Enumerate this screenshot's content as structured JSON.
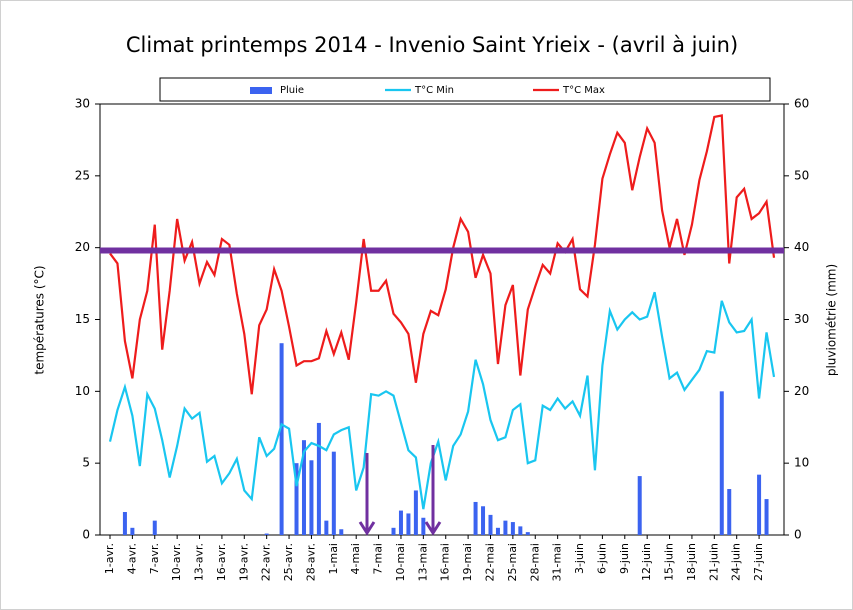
{
  "chart_data": {
    "type": "bar",
    "title": "Climat printemps 2014 - Invenio Saint Yrieix - (avril à juin)",
    "y_label": "températures (°C)",
    "y2_label": "pluviométrie (mm)",
    "categories": [
      "1-avr.",
      null,
      null,
      "4-avr.",
      null,
      null,
      "7-avr.",
      null,
      null,
      "10-avr.",
      null,
      null,
      "13-avr.",
      null,
      null,
      "16-avr.",
      null,
      null,
      "19-avr.",
      null,
      null,
      "22-avr.",
      null,
      null,
      "25-avr.",
      null,
      null,
      "28-avr.",
      null,
      null,
      "1-mai",
      null,
      null,
      "4-mai",
      null,
      null,
      "7-mai",
      null,
      null,
      "10-mai",
      null,
      null,
      "13-mai",
      null,
      null,
      "16-mai",
      null,
      null,
      "19-mai",
      null,
      null,
      "22-mai",
      null,
      null,
      "25-mai",
      null,
      null,
      "28-mai",
      null,
      null,
      "31-mai",
      null,
      null,
      "3-juin",
      null,
      null,
      "6-juin",
      null,
      null,
      "9-juin",
      null,
      null,
      "12-juin",
      null,
      null,
      "15-juin",
      null,
      null,
      "18-juin",
      null,
      null,
      "21-juin",
      null,
      null,
      "24-juin",
      null,
      null,
      "27-juin",
      null,
      null
    ],
    "series": [
      {
        "name": "Pluie",
        "type": "bar",
        "axis": "y2",
        "color": "#3b63f0",
        "values": [
          0,
          0,
          3.2,
          1,
          0,
          0,
          2,
          0,
          0,
          0,
          0,
          0,
          0,
          0,
          0,
          0,
          0,
          0,
          0,
          0,
          0,
          0.2,
          0,
          26.7,
          0,
          10,
          13.2,
          10.4,
          15.6,
          2,
          11.6,
          0.8,
          0,
          0,
          0,
          0,
          0,
          0,
          1,
          3.4,
          3,
          6.2,
          2.4,
          0,
          0,
          0,
          0,
          0,
          0,
          4.6,
          4,
          2.8,
          1,
          2,
          1.8,
          1.2,
          0.4,
          0,
          0,
          0,
          0,
          0,
          0,
          0,
          0,
          0,
          0,
          0,
          0,
          0,
          0,
          8.2,
          0,
          0,
          0,
          0,
          0,
          0,
          0,
          0,
          0,
          0,
          20,
          6.4,
          0,
          0,
          0,
          8.4,
          5,
          0
        ]
      },
      {
        "name": "T°C Min",
        "type": "line",
        "color": "#19c6f0",
        "values": [
          6.5,
          8.7,
          10.3,
          8.3,
          4.8,
          9.8,
          8.8,
          6.6,
          4,
          6.2,
          8.8,
          8.1,
          8.5,
          5.1,
          5.5,
          3.6,
          4.3,
          5.3,
          3.1,
          2.5,
          6.8,
          5.5,
          6,
          7.7,
          7.4,
          3.4,
          5.8,
          6.4,
          6.2,
          5.9,
          7,
          7.3,
          7.5,
          3.1,
          4.7,
          9.8,
          9.7,
          10,
          9.7,
          7.8,
          5.9,
          5.4,
          1.8,
          5,
          6.5,
          3.8,
          6.2,
          7,
          8.6,
          12.2,
          10.5,
          8,
          6.6,
          6.8,
          8.7,
          9.1,
          5,
          5.2,
          9,
          8.7,
          9.5,
          8.8,
          9.3,
          8.3,
          11.1,
          4.5,
          11.8,
          15.6,
          14.3,
          15,
          15.5,
          15,
          15.2,
          16.9,
          13.8,
          10.9,
          11.3,
          10.1,
          10.8,
          11.5,
          12.8,
          12.7,
          16.3,
          14.8,
          14.1,
          14.2,
          15,
          9.5,
          14.1,
          11
        ]
      },
      {
        "name": "T°C Max",
        "type": "line",
        "color": "#ee1c1c",
        "values": [
          19.6,
          18.9,
          13.5,
          10.9,
          15,
          17,
          21.6,
          12.9,
          17,
          22,
          19.1,
          20.4,
          17.5,
          19,
          18.1,
          20.6,
          20.2,
          16.8,
          14,
          9.8,
          14.6,
          15.7,
          18.5,
          17,
          14.5,
          11.8,
          12.1,
          12.1,
          12.3,
          14.2,
          12.6,
          14.1,
          12.2,
          16.2,
          20.6,
          17,
          17,
          17.7,
          15.4,
          14.8,
          14,
          10.6,
          14,
          15.6,
          15.3,
          17.1,
          20,
          22,
          21.1,
          17.9,
          19.5,
          18.2,
          11.9,
          16,
          17.4,
          11.1,
          15.7,
          17.3,
          18.8,
          18.2,
          20.3,
          19.7,
          20.6,
          17.1,
          16.6,
          20.2,
          24.8,
          26.5,
          28,
          27.3,
          24,
          26.3,
          28.3,
          27.3,
          22.6,
          20,
          22,
          19.5,
          21.6,
          24.7,
          26.7,
          29.1,
          29.2,
          18.9,
          23.5,
          24.1,
          22,
          22.4,
          23.2,
          19.3
        ]
      }
    ],
    "reference_line": {
      "value": 19.8,
      "color": "#7030a0"
    },
    "ylim": [
      0,
      30
    ],
    "yticks": [
      0,
      5,
      10,
      15,
      20,
      25,
      30
    ],
    "y2lim": [
      0,
      60
    ],
    "y2ticks": [
      0,
      10,
      20,
      30,
      40,
      50,
      60
    ],
    "grid": false
  }
}
